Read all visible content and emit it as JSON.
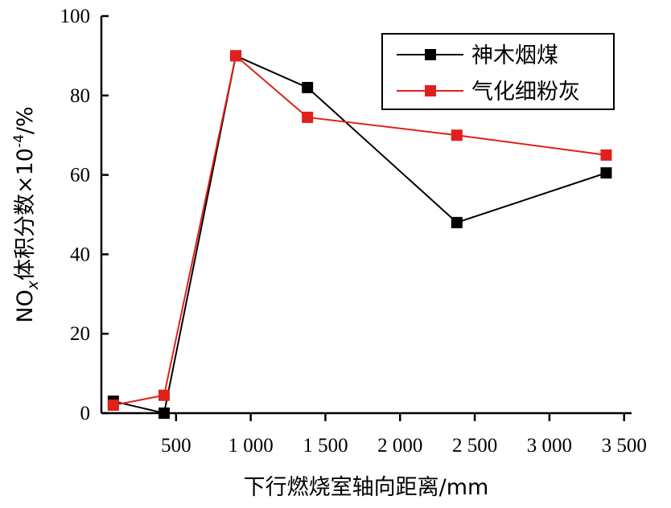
{
  "chart_data": {
    "type": "line",
    "title": "",
    "xlabel": "下行燃烧室轴向距离/mm",
    "ylabel_prefix": "NO",
    "ylabel_sub": "x",
    "ylabel_rest": "体积分数×10",
    "ylabel_sup": "-4",
    "ylabel_unit": "/%",
    "xlim": [
      0,
      3550
    ],
    "ylim": [
      0,
      100
    ],
    "xticks": [
      500,
      1000,
      1500,
      2000,
      2500,
      3000,
      3500
    ],
    "xtick_labels": [
      "500",
      "1 000",
      "1 500",
      "2 000",
      "2 500",
      "3 000",
      "3 500"
    ],
    "yticks": [
      0,
      20,
      40,
      60,
      80,
      100
    ],
    "ytick_labels": [
      "0",
      "20",
      "40",
      "60",
      "80",
      "100"
    ],
    "legend_position": "top-right",
    "series": [
      {
        "name": "神木烟煤",
        "color": "#000000",
        "marker_color": "#000000",
        "x": [
          80,
          420,
          900,
          1380,
          2380,
          3380
        ],
        "y": [
          3,
          0,
          90,
          82,
          48,
          60.5
        ]
      },
      {
        "name": "气化细粉灰",
        "color": "#e0201b",
        "marker_color": "#e0201b",
        "x": [
          80,
          420,
          900,
          1380,
          2380,
          3380
        ],
        "y": [
          2,
          4.5,
          90,
          74.5,
          70,
          65
        ]
      }
    ]
  }
}
